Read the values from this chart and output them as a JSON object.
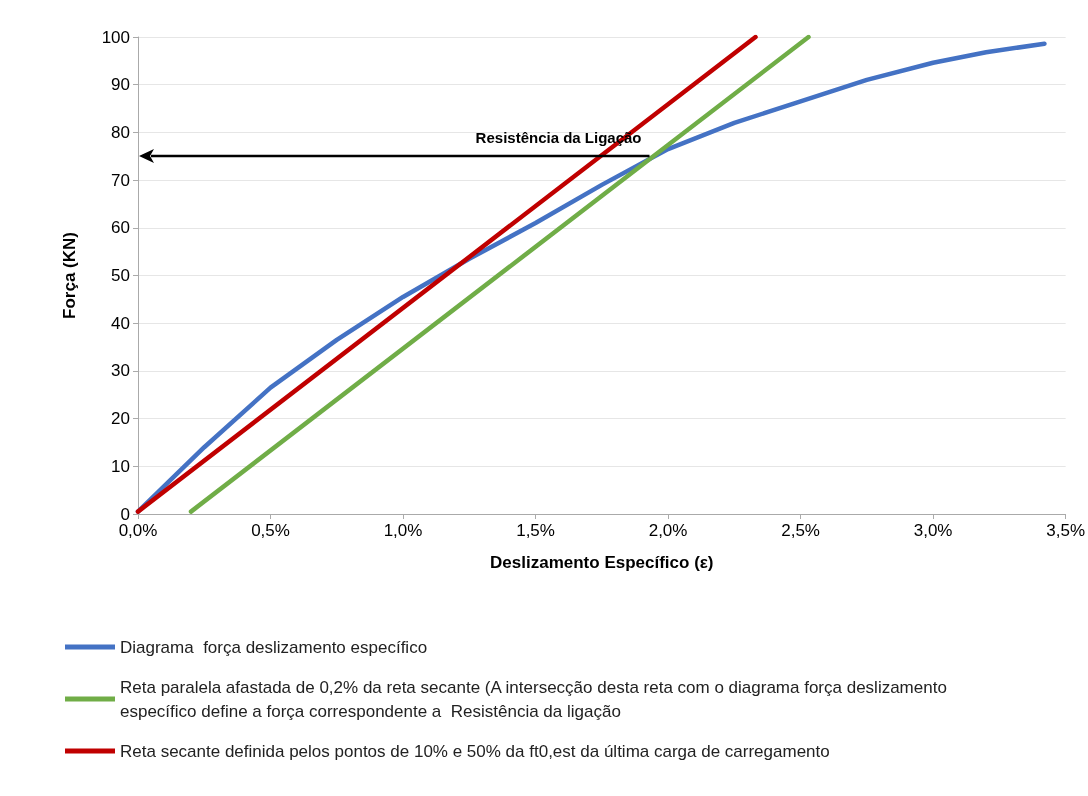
{
  "chart_data": {
    "type": "line",
    "xlabel": "Deslizamento Específico (ε)",
    "ylabel": "Força (KN)",
    "xlim": [
      0,
      3.5
    ],
    "xticks": [
      {
        "value": 0,
        "label": "0,0%"
      },
      {
        "value": 0.5,
        "label": "0,5%"
      },
      {
        "value": 1,
        "label": "1,0%"
      },
      {
        "value": 1.5,
        "label": "1,5%"
      },
      {
        "value": 2,
        "label": "2,0%"
      },
      {
        "value": 2.5,
        "label": "2,5%"
      },
      {
        "value": 3,
        "label": "3,0%"
      },
      {
        "value": 3.5,
        "label": "3,5%"
      }
    ],
    "ylim": [
      0,
      100
    ],
    "yticks": [
      0,
      10,
      20,
      30,
      40,
      50,
      60,
      70,
      80,
      90,
      100
    ],
    "series": [
      {
        "name": "Diagrama  força deslizamento específico",
        "color": "#4472c4",
        "x": [
          0,
          0.25,
          0.5,
          0.75,
          1,
          1.25,
          1.5,
          1.75,
          2,
          2.25,
          2.5,
          2.75,
          3,
          3.2,
          3.42
        ],
        "values": [
          0.5,
          14,
          26.5,
          36.5,
          45.5,
          53.5,
          61,
          69,
          76.5,
          82,
          86.5,
          91,
          94.6,
          96.8,
          98.6
        ]
      },
      {
        "name": "Reta paralela afastada de 0,2% da reta secante (A intersecção desta reta com o diagrama força deslizamento específico define a força correspondente a  Resistência da ligação",
        "color": "#70ad47",
        "x": [
          0.2,
          2.53
        ],
        "values": [
          0.5,
          100
        ]
      },
      {
        "name": "Reta secante definida pelos pontos de 10% e 50% da ft0,est da última carga de carregamento",
        "color": "#c00000",
        "x": [
          0,
          2.33
        ],
        "values": [
          0.5,
          100
        ]
      }
    ],
    "annotations": [
      {
        "text": "Resistência da Ligação",
        "x": 1.93,
        "y": 75
      }
    ],
    "grid": "y",
    "legend": "bottom",
    "marker": "none",
    "line_style": "solid"
  }
}
